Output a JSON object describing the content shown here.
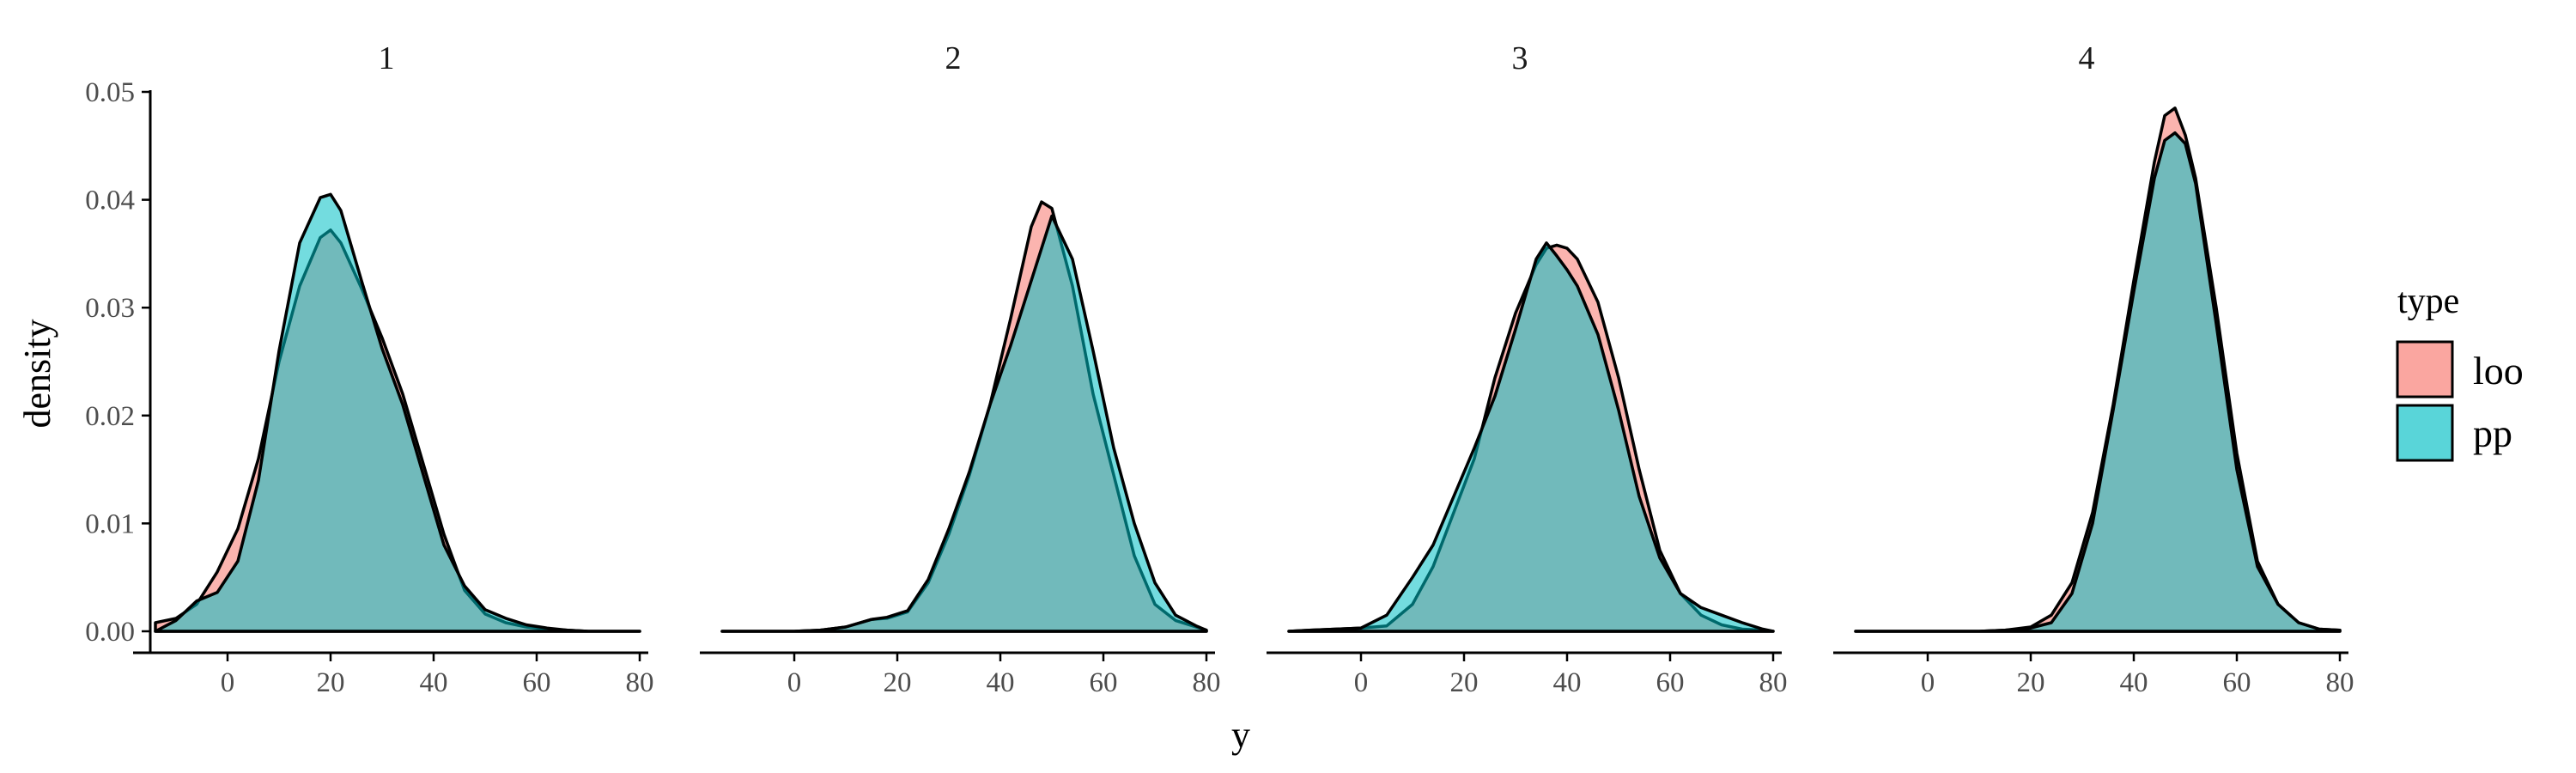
{
  "chart_data": {
    "type": "area",
    "chart_kind": "faceted density plot",
    "xlabel": "y",
    "ylabel": "density",
    "x_ticks": [
      0,
      20,
      40,
      60,
      80
    ],
    "y_ticks": [
      "0.00",
      "0.01",
      "0.02",
      "0.03",
      "0.04",
      "0.05"
    ],
    "xlim": [
      -15,
      80
    ],
    "ylim": [
      0,
      0.05
    ],
    "grid": false,
    "legend": {
      "title": "type",
      "position": "right",
      "entries": [
        {
          "label": "loo",
          "color": "#F8766D"
        },
        {
          "label": "pp",
          "color": "#00BFC4"
        }
      ]
    },
    "facets": [
      {
        "label": "1",
        "series": [
          {
            "name": "loo",
            "x": [
              -14,
              -10,
              -6,
              -2,
              2,
              6,
              10,
              14,
              18,
              20,
              22,
              26,
              30,
              34,
              38,
              42,
              46,
              50,
              54,
              58,
              62,
              66,
              70,
              74,
              78,
              80
            ],
            "y": [
              0.0008,
              0.0012,
              0.0025,
              0.0055,
              0.0095,
              0.016,
              0.025,
              0.032,
              0.0365,
              0.0372,
              0.036,
              0.0318,
              0.0272,
              0.022,
              0.0155,
              0.009,
              0.0038,
              0.0016,
              0.0008,
              0.0004,
              0.0002,
              0.0001,
              0.0,
              0.0,
              0.0,
              0.0
            ]
          },
          {
            "name": "pp",
            "x": [
              -14,
              -10,
              -6,
              -2,
              2,
              6,
              10,
              14,
              18,
              20,
              22,
              26,
              30,
              34,
              38,
              42,
              46,
              50,
              54,
              58,
              62,
              66,
              70,
              74,
              78,
              80
            ],
            "y": [
              0.0,
              0.001,
              0.0028,
              0.0036,
              0.0065,
              0.014,
              0.026,
              0.036,
              0.0402,
              0.0405,
              0.039,
              0.0325,
              0.0262,
              0.021,
              0.0145,
              0.008,
              0.0042,
              0.002,
              0.0012,
              0.0006,
              0.0003,
              0.0001,
              0.0,
              0.0,
              0.0,
              0.0
            ]
          }
        ]
      },
      {
        "label": "2",
        "series": [
          {
            "name": "loo",
            "x": [
              -14,
              -10,
              -5,
              0,
              5,
              10,
              15,
              18,
              22,
              26,
              30,
              34,
              38,
              42,
              46,
              48,
              50,
              54,
              58,
              62,
              66,
              70,
              74,
              78,
              80
            ],
            "y": [
              0.0,
              0.0,
              0.0,
              0.0,
              0.0001,
              0.0004,
              0.0011,
              0.0012,
              0.0018,
              0.0045,
              0.009,
              0.0145,
              0.021,
              0.029,
              0.0375,
              0.0398,
              0.0392,
              0.032,
              0.022,
              0.0145,
              0.007,
              0.0025,
              0.001,
              0.0004,
              0.0001
            ]
          },
          {
            "name": "pp",
            "x": [
              -14,
              -10,
              -5,
              0,
              5,
              10,
              15,
              18,
              22,
              26,
              30,
              34,
              38,
              42,
              46,
              48,
              50,
              54,
              58,
              62,
              66,
              70,
              74,
              78,
              80
            ],
            "y": [
              0.0,
              0.0,
              0.0,
              0.0,
              0.0001,
              0.0004,
              0.0011,
              0.0013,
              0.0019,
              0.0048,
              0.0095,
              0.0148,
              0.021,
              0.0265,
              0.0325,
              0.0355,
              0.0385,
              0.0345,
              0.026,
              0.017,
              0.01,
              0.0045,
              0.0015,
              0.0005,
              0.0001
            ]
          }
        ]
      },
      {
        "label": "3",
        "series": [
          {
            "name": "loo",
            "x": [
              -14,
              -10,
              -5,
              0,
              5,
              10,
              14,
              18,
              22,
              26,
              30,
              34,
              36,
              38,
              40,
              42,
              46,
              50,
              54,
              58,
              62,
              66,
              70,
              74,
              78,
              80
            ],
            "y": [
              0.0,
              0.0001,
              0.0002,
              0.0003,
              0.0005,
              0.0025,
              0.006,
              0.011,
              0.016,
              0.0235,
              0.0295,
              0.034,
              0.0355,
              0.0358,
              0.0355,
              0.0345,
              0.0305,
              0.0235,
              0.015,
              0.0075,
              0.0035,
              0.0015,
              0.0006,
              0.0002,
              0.0001,
              0.0
            ]
          },
          {
            "name": "pp",
            "x": [
              -14,
              -10,
              -5,
              0,
              5,
              10,
              14,
              18,
              22,
              26,
              30,
              34,
              36,
              38,
              40,
              42,
              46,
              50,
              54,
              58,
              62,
              66,
              70,
              74,
              78,
              80
            ],
            "y": [
              0.0,
              0.0001,
              0.0002,
              0.0003,
              0.0015,
              0.005,
              0.008,
              0.0125,
              0.017,
              0.0218,
              0.028,
              0.0345,
              0.036,
              0.0348,
              0.0335,
              0.032,
              0.0275,
              0.0205,
              0.0125,
              0.0068,
              0.0035,
              0.0022,
              0.0015,
              0.0008,
              0.0002,
              0.0
            ]
          }
        ]
      },
      {
        "label": "4",
        "series": [
          {
            "name": "loo",
            "x": [
              -14,
              -10,
              -5,
              0,
              5,
              10,
              15,
              20,
              24,
              28,
              32,
              36,
              40,
              44,
              46,
              48,
              50,
              52,
              56,
              60,
              64,
              68,
              72,
              76,
              80
            ],
            "y": [
              0.0,
              0.0,
              0.0,
              0.0,
              0.0,
              0.0,
              0.0001,
              0.0004,
              0.0015,
              0.0045,
              0.011,
              0.021,
              0.0325,
              0.0435,
              0.0478,
              0.0485,
              0.046,
              0.042,
              0.03,
              0.0165,
              0.0065,
              0.0025,
              0.0008,
              0.0002,
              0.0001
            ]
          },
          {
            "name": "pp",
            "x": [
              -14,
              -10,
              -5,
              0,
              5,
              10,
              15,
              20,
              24,
              28,
              32,
              36,
              40,
              44,
              46,
              48,
              50,
              52,
              56,
              60,
              64,
              68,
              72,
              76,
              80
            ],
            "y": [
              0.0,
              0.0,
              0.0,
              0.0,
              0.0,
              0.0,
              0.0001,
              0.0003,
              0.0008,
              0.0035,
              0.01,
              0.0205,
              0.0315,
              0.042,
              0.0455,
              0.0462,
              0.0452,
              0.0415,
              0.0285,
              0.015,
              0.006,
              0.0025,
              0.0008,
              0.0002,
              0.0001
            ]
          }
        ]
      }
    ]
  }
}
